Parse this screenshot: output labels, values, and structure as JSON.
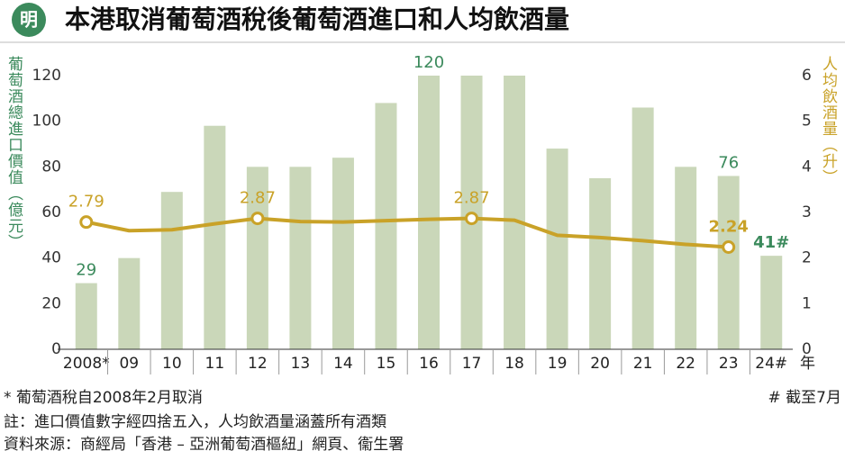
{
  "chart_data": {
    "type": "bar",
    "title": "本港取消葡萄酒稅後葡萄酒進口和人均飲酒量",
    "logo": "明",
    "ylabel": "葡萄酒總進口價值（億元）",
    "y2label": "人均飲酒量（升）",
    "xlabel": "年",
    "categories": [
      "2008*",
      "09",
      "10",
      "11",
      "12",
      "13",
      "14",
      "15",
      "16",
      "17",
      "18",
      "19",
      "20",
      "21",
      "22",
      "23",
      "24#"
    ],
    "series": [
      {
        "type": "bar",
        "color": "#cad7b9",
        "label_color": "#3b8a5c",
        "values": [
          29,
          40,
          69,
          98,
          80,
          80,
          84,
          108,
          120,
          120,
          120,
          88,
          75,
          106,
          80,
          76,
          41
        ],
        "value_labels": [
          "29",
          null,
          null,
          null,
          null,
          null,
          null,
          null,
          "120",
          null,
          null,
          null,
          null,
          null,
          null,
          "76",
          "41#"
        ]
      },
      {
        "type": "line",
        "axis": "y2",
        "color": "#c9a228",
        "values": [
          2.79,
          2.6,
          2.62,
          2.75,
          2.87,
          2.8,
          2.79,
          2.82,
          2.85,
          2.87,
          2.83,
          2.5,
          2.45,
          2.38,
          2.3,
          2.24,
          null
        ],
        "value_labels": [
          "2.79",
          null,
          null,
          null,
          "2.87",
          null,
          null,
          null,
          null,
          "2.87",
          null,
          null,
          null,
          null,
          null,
          "2.24",
          null
        ]
      }
    ],
    "ylim": [
      0,
      120
    ],
    "yticks": [
      0,
      20,
      40,
      60,
      80,
      100,
      120
    ],
    "y2lim": [
      0,
      6
    ],
    "y2ticks": [
      0,
      1,
      2,
      3,
      4,
      5,
      6
    ],
    "grid": false,
    "notes": [
      "* 葡萄酒稅自2008年2月取消",
      "# 截至7月",
      "註：進口價值數字經四捨五入，人均飲酒量涵蓋所有酒類",
      "資料來源：商經局「香港 – 亞洲葡萄酒樞紐」網頁、衞生署"
    ]
  }
}
